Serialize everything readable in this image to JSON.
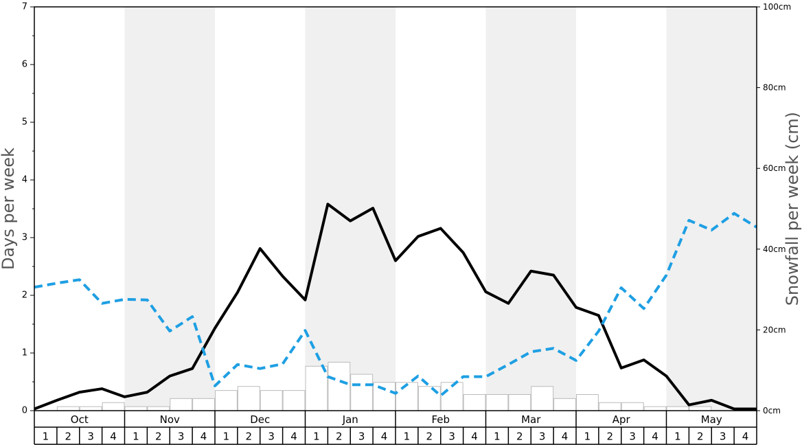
{
  "chart_data": {
    "type": "bar",
    "y_left": {
      "label": "Days per week",
      "lim": [
        0,
        7
      ],
      "ticks": [
        "0",
        "1",
        "2",
        "3",
        "4",
        "5",
        "6",
        "7"
      ]
    },
    "y_right": {
      "label": "Snowfall per week (cm)",
      "lim": [
        0,
        100
      ],
      "ticks": [
        "0cm",
        "20cm",
        "40cm",
        "60cm",
        "80cm",
        "100cm"
      ]
    },
    "months": [
      "Oct",
      "Nov",
      "Dec",
      "Jan",
      "Feb",
      "Mar",
      "Apr",
      "May"
    ],
    "weeks": [
      "1",
      "2",
      "3",
      "4"
    ],
    "grid": false,
    "shaded_months": [
      1,
      3,
      5,
      7
    ],
    "series": [
      {
        "kind": "bar",
        "axis": "right",
        "color": "#ffffff",
        "edge": "#bbbbbb",
        "values": [
          0,
          1,
          1,
          2,
          1,
          1,
          3,
          3,
          5,
          6,
          5,
          5,
          11,
          12,
          9,
          7,
          7,
          6,
          7,
          4,
          4,
          4,
          6,
          3,
          4,
          2,
          2,
          1,
          1,
          1,
          0,
          0
        ]
      },
      {
        "kind": "line",
        "axis": "left",
        "color": "#000000",
        "style": "solid",
        "values": [
          0.03,
          0.18,
          0.32,
          0.38,
          0.24,
          0.32,
          0.6,
          0.73,
          1.43,
          2.05,
          2.81,
          2.33,
          1.92,
          3.58,
          3.29,
          3.51,
          2.6,
          3.02,
          3.16,
          2.74,
          2.06,
          1.86,
          2.42,
          2.35,
          1.79,
          1.65,
          0.74,
          0.88,
          0.6,
          0.1,
          0.18,
          0.03,
          0.03
        ]
      },
      {
        "kind": "line",
        "axis": "left",
        "color": "#1e9fe3",
        "style": "dashed",
        "values": [
          2.14,
          2.21,
          2.27,
          1.86,
          1.93,
          1.92,
          1.38,
          1.63,
          0.43,
          0.8,
          0.73,
          0.81,
          1.39,
          0.59,
          0.45,
          0.45,
          0.3,
          0.6,
          0.26,
          0.59,
          0.59,
          0.8,
          1.02,
          1.08,
          0.87,
          1.38,
          2.13,
          1.77,
          2.35,
          3.3,
          3.13,
          3.42,
          3.18
        ]
      }
    ]
  }
}
